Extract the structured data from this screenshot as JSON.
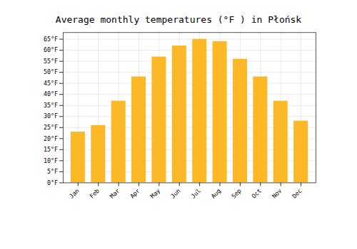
{
  "chart_data": {
    "type": "bar",
    "title": "Average monthly temperatures (°F ) in Płońsk",
    "categories": [
      "Jan",
      "Feb",
      "Mar",
      "Apr",
      "May",
      "Jun",
      "Jul",
      "Aug",
      "Sep",
      "Oct",
      "Nov",
      "Dec"
    ],
    "values": [
      23,
      26,
      37,
      48,
      57,
      62,
      65,
      64,
      56,
      48,
      37,
      28
    ],
    "color": "#FDB827",
    "ylim": [
      0,
      68
    ],
    "yticks": [
      {
        "value": 0,
        "label": "0°F"
      },
      {
        "value": 5,
        "label": "5°F"
      },
      {
        "value": 10,
        "label": "10°F"
      },
      {
        "value": 15,
        "label": "15°F"
      },
      {
        "value": 20,
        "label": "20°F"
      },
      {
        "value": 25,
        "label": "25°F"
      },
      {
        "value": 30,
        "label": "30°F"
      },
      {
        "value": 35,
        "label": "35°F"
      },
      {
        "value": 40,
        "label": "40°F"
      },
      {
        "value": 45,
        "label": "45°F"
      },
      {
        "value": 50,
        "label": "50°F"
      },
      {
        "value": 55,
        "label": "55°F"
      },
      {
        "value": 60,
        "label": "60°F"
      },
      {
        "value": 65,
        "label": "65°F"
      }
    ],
    "grid": true
  }
}
